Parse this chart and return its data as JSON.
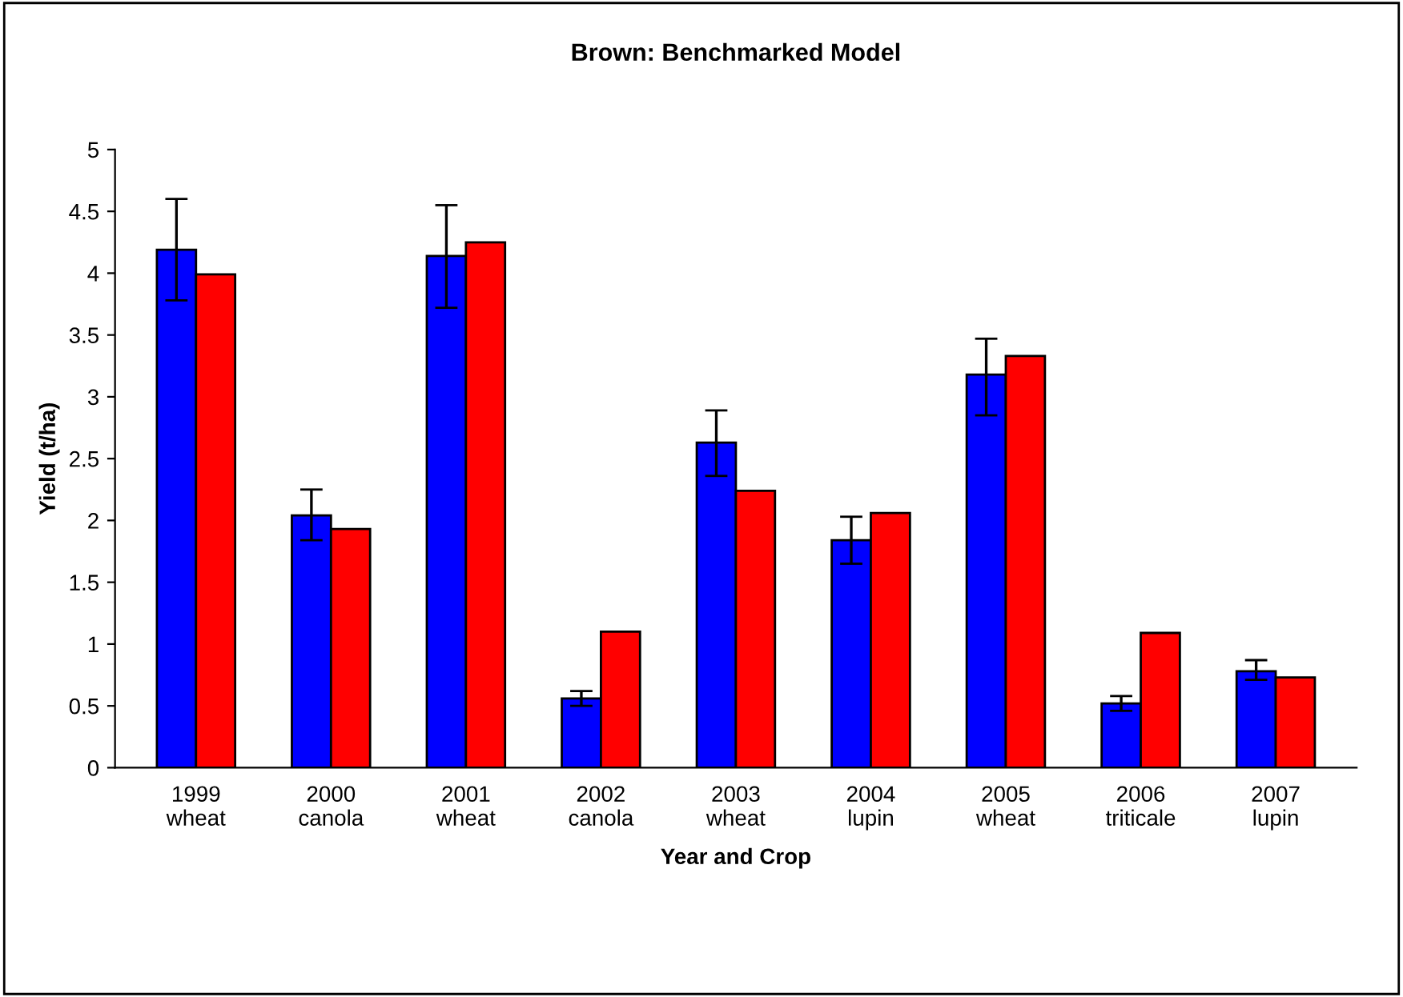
{
  "chart_data": {
    "type": "bar",
    "title": "Brown: Benchmarked Model",
    "xlabel": "Year and Crop",
    "ylabel": "Yield (t/ha)",
    "categories": [
      "1999\nwheat",
      "2000\ncanola",
      "2001\nwheat",
      "2002\ncanola",
      "2003\nwheat",
      "2004\nlupin",
      "2005\nwheat",
      "2006\ntriticale",
      "2007\nlupin"
    ],
    "series": [
      {
        "color": "#0000ff",
        "values": [
          4.19,
          2.04,
          4.14,
          0.56,
          2.63,
          1.84,
          3.18,
          0.52,
          0.78
        ],
        "errors": [
          [
            3.78,
            4.6
          ],
          [
            1.84,
            2.25
          ],
          [
            3.72,
            4.55
          ],
          [
            0.5,
            0.62
          ],
          [
            2.36,
            2.89
          ],
          [
            1.65,
            2.03
          ],
          [
            2.85,
            3.47
          ],
          [
            0.46,
            0.58
          ],
          [
            0.71,
            0.87
          ]
        ]
      },
      {
        "color": "#ff0000",
        "values": [
          3.99,
          1.93,
          4.25,
          1.1,
          2.24,
          2.06,
          3.33,
          1.09,
          0.73
        ]
      }
    ],
    "ylim": [
      0,
      5
    ],
    "yticks": [
      0,
      0.5,
      1,
      1.5,
      2,
      2.5,
      3,
      3.5,
      4,
      4.5,
      5
    ],
    "grid": false,
    "legend": false
  }
}
